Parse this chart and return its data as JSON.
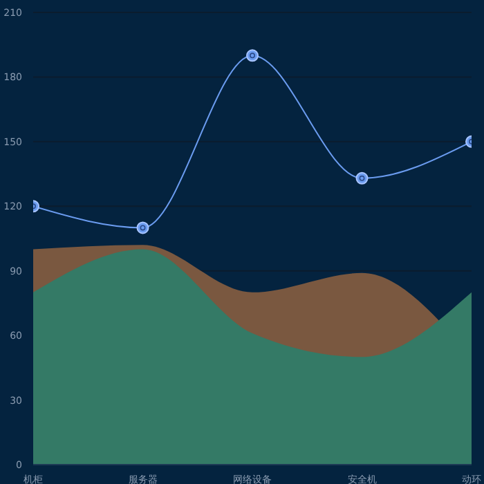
{
  "chart_data": {
    "type": "area",
    "categories": [
      "机柜",
      "服务器",
      "网络设备",
      "安全机",
      "动环"
    ],
    "series": [
      {
        "color": "#7a5840",
        "values": [
          100,
          102,
          80,
          89,
          50
        ]
      },
      {
        "color": "#347a66",
        "values": [
          80,
          100,
          61,
          50,
          80
        ]
      },
      {
        "type": "line",
        "color": "#6b9cf0",
        "marker": "circle",
        "values": [
          120,
          110,
          190,
          133,
          150
        ]
      }
    ],
    "ylim": [
      0,
      210
    ],
    "yticks": [
      0,
      30,
      60,
      90,
      120,
      150,
      180,
      210
    ],
    "grid": "y",
    "legend": false
  }
}
